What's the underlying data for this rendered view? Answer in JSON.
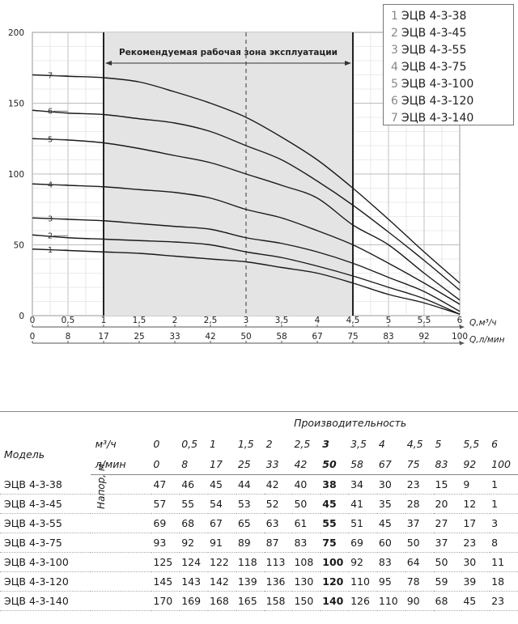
{
  "chart_data": {
    "type": "line",
    "title": "",
    "zone_label": "Рекомендуемая рабочая зона эксплуатации",
    "zone_range_m3h": [
      1,
      4.5
    ],
    "x_label_m3h": "Q,м³/ч",
    "x_label_lmin": "Q,л/мин",
    "x_ticks_m3h": [
      "0",
      "0,5",
      "1",
      "1,5",
      "2",
      "2,5",
      "3",
      "3,5",
      "4",
      "4,5",
      "5",
      "5,5",
      "6"
    ],
    "x_ticks_lmin": [
      "0",
      "8",
      "17",
      "25",
      "33",
      "42",
      "50",
      "58",
      "67",
      "75",
      "83",
      "92",
      "100"
    ],
    "x_values": [
      0,
      0.5,
      1,
      1.5,
      2,
      2.5,
      3,
      3.5,
      4,
      4.5,
      5,
      5.5,
      6
    ],
    "xlim": [
      0,
      6
    ],
    "ylim": [
      0,
      200
    ],
    "y_ticks": [
      "0",
      "50",
      "100",
      "150",
      "200"
    ],
    "y_tick_values": [
      0,
      50,
      100,
      150,
      200
    ],
    "grid": true,
    "legend_position": "top-right",
    "series": [
      {
        "num": "1",
        "name": "ЭЦВ 4-3-38",
        "values": [
          47,
          46,
          45,
          44,
          42,
          40,
          38,
          34,
          30,
          23,
          15,
          9,
          1
        ]
      },
      {
        "num": "2",
        "name": "ЭЦВ 4-3-45",
        "values": [
          57,
          55,
          54,
          53,
          52,
          50,
          45,
          41,
          35,
          28,
          20,
          12,
          1
        ]
      },
      {
        "num": "3",
        "name": "ЭЦВ 4-3-55",
        "values": [
          69,
          68,
          67,
          65,
          63,
          61,
          55,
          51,
          45,
          37,
          27,
          17,
          3
        ]
      },
      {
        "num": "4",
        "name": "ЭЦВ 4-3-75",
        "values": [
          93,
          92,
          91,
          89,
          87,
          83,
          75,
          69,
          60,
          50,
          37,
          23,
          8
        ]
      },
      {
        "num": "5",
        "name": "ЭЦВ 4-3-100",
        "values": [
          125,
          124,
          122,
          118,
          113,
          108,
          100,
          92,
          83,
          64,
          50,
          30,
          11
        ]
      },
      {
        "num": "6",
        "name": "ЭЦВ 4-3-120",
        "values": [
          145,
          143,
          142,
          139,
          136,
          130,
          120,
          110,
          95,
          78,
          59,
          39,
          18
        ]
      },
      {
        "num": "7",
        "name": "ЭЦВ 4-3-140",
        "values": [
          170,
          169,
          168,
          165,
          158,
          150,
          140,
          126,
          110,
          90,
          68,
          45,
          23
        ]
      }
    ]
  },
  "table": {
    "group_header": "Производительность",
    "model_header": "Модель",
    "unit_m3h": "м³/ч",
    "unit_lmin": "л/мин",
    "head_label": "Напор, м",
    "m3h": [
      "0",
      "0,5",
      "1",
      "1,5",
      "2",
      "2,5",
      "3",
      "3,5",
      "4",
      "4,5",
      "5",
      "5,5",
      "6"
    ],
    "lmin": [
      "0",
      "8",
      "17",
      "25",
      "33",
      "42",
      "50",
      "58",
      "67",
      "75",
      "83",
      "92",
      "100"
    ],
    "rows": [
      {
        "model": "ЭЦВ 4-3-38",
        "values": [
          "47",
          "46",
          "45",
          "44",
          "42",
          "40",
          "38",
          "34",
          "30",
          "23",
          "15",
          "9",
          "1"
        ]
      },
      {
        "model": "ЭЦВ 4-3-45",
        "values": [
          "57",
          "55",
          "54",
          "53",
          "52",
          "50",
          "45",
          "41",
          "35",
          "28",
          "20",
          "12",
          "1"
        ]
      },
      {
        "model": "ЭЦВ 4-3-55",
        "values": [
          "69",
          "68",
          "67",
          "65",
          "63",
          "61",
          "55",
          "51",
          "45",
          "37",
          "27",
          "17",
          "3"
        ]
      },
      {
        "model": "ЭЦВ 4-3-75",
        "values": [
          "93",
          "92",
          "91",
          "89",
          "87",
          "83",
          "75",
          "69",
          "60",
          "50",
          "37",
          "23",
          "8"
        ]
      },
      {
        "model": "ЭЦВ 4-3-100",
        "values": [
          "125",
          "124",
          "122",
          "118",
          "113",
          "108",
          "100",
          "92",
          "83",
          "64",
          "50",
          "30",
          "11"
        ]
      },
      {
        "model": "ЭЦВ 4-3-120",
        "values": [
          "145",
          "143",
          "142",
          "139",
          "136",
          "130",
          "120",
          "110",
          "95",
          "78",
          "59",
          "39",
          "18"
        ]
      },
      {
        "model": "ЭЦВ 4-3-140",
        "values": [
          "170",
          "169",
          "168",
          "165",
          "158",
          "150",
          "140",
          "126",
          "110",
          "90",
          "68",
          "45",
          "23"
        ]
      }
    ]
  }
}
